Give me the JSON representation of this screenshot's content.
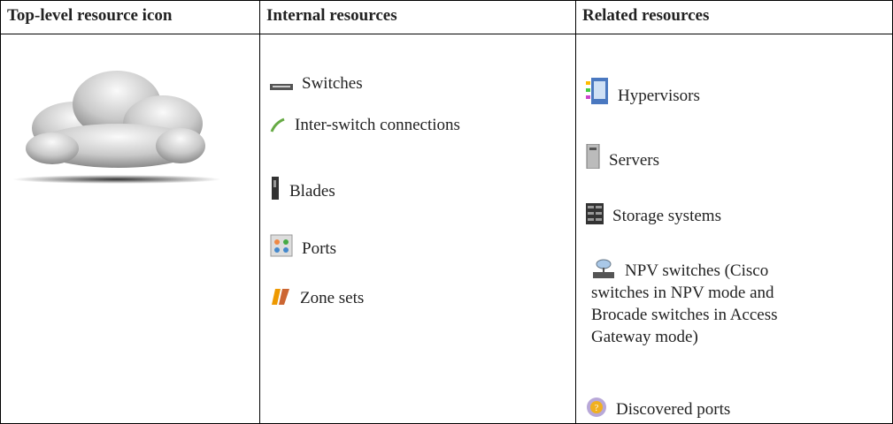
{
  "table": {
    "headers": [
      "Top-level resource icon",
      "Internal resources",
      "Related resources"
    ],
    "internal_resources": [
      "Switches",
      "Inter-switch connections",
      "Blades",
      "Ports",
      "Zone sets"
    ],
    "related_resources": [
      "Hypervisors",
      "Servers",
      "Storage systems",
      "NPV switches (Cisco switches in NPV mode and Brocade switches in Access Gateway mode)",
      "Discovered ports"
    ]
  }
}
